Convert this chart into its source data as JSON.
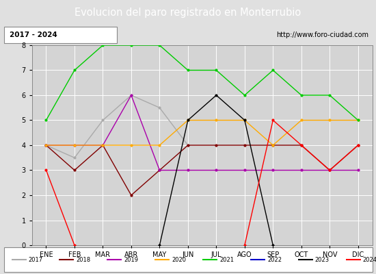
{
  "title": "Evolucion del paro registrado en Monterrubio",
  "subtitle_left": "2017 - 2024",
  "subtitle_right": "http://www.foro-ciudad.com",
  "months": [
    "ENE",
    "FEB",
    "MAR",
    "ABR",
    "MAY",
    "JUN",
    "JUL",
    "AGO",
    "SEP",
    "OCT",
    "NOV",
    "DIC"
  ],
  "series": {
    "2017": {
      "color": "#aaaaaa",
      "data": [
        4.0,
        3.5,
        5.0,
        6.0,
        5.5,
        4.0,
        null,
        null,
        null,
        null,
        null,
        null
      ]
    },
    "2018": {
      "color": "#800000",
      "data": [
        4.0,
        3.0,
        4.0,
        2.0,
        3.0,
        4.0,
        4.0,
        4.0,
        4.0,
        4.0,
        3.0,
        4.0
      ]
    },
    "2019": {
      "color": "#aa00aa",
      "data": [
        4.0,
        4.0,
        4.0,
        6.0,
        3.0,
        3.0,
        3.0,
        3.0,
        3.0,
        3.0,
        3.0,
        3.0
      ]
    },
    "2020": {
      "color": "#ffaa00",
      "data": [
        4.0,
        4.0,
        4.0,
        4.0,
        4.0,
        5.0,
        5.0,
        5.0,
        4.0,
        5.0,
        5.0,
        5.0
      ]
    },
    "2021": {
      "color": "#00cc00",
      "data": [
        5.0,
        7.0,
        8.0,
        8.0,
        8.0,
        7.0,
        7.0,
        6.0,
        7.0,
        6.0,
        6.0,
        5.0
      ]
    },
    "2022": {
      "color": "#0000cc",
      "data": [
        null,
        null,
        null,
        null,
        null,
        null,
        null,
        null,
        null,
        null,
        null,
        null
      ]
    },
    "2023": {
      "color": "#000000",
      "data": [
        null,
        null,
        null,
        null,
        0.0,
        5.0,
        6.0,
        5.0,
        0.0,
        null,
        null,
        null
      ]
    },
    "2024": {
      "color": "#ff0000",
      "data": [
        3.0,
        0.0,
        null,
        null,
        null,
        null,
        null,
        0.0,
        5.0,
        4.0,
        3.0,
        4.0
      ]
    }
  },
  "ylim": [
    0.0,
    8.0
  ],
  "yticks": [
    0.0,
    1.0,
    2.0,
    3.0,
    4.0,
    5.0,
    6.0,
    7.0,
    8.0
  ],
  "title_bg_color": "#4472c4",
  "title_fg_color": "#ffffff",
  "title_fontsize": 10.5,
  "header_bg_color": "#e8e8e8",
  "plot_bg_color": "#d4d4d4",
  "outer_bg_color": "#e0e0e0",
  "legend_bg_color": "#e8e8e8"
}
